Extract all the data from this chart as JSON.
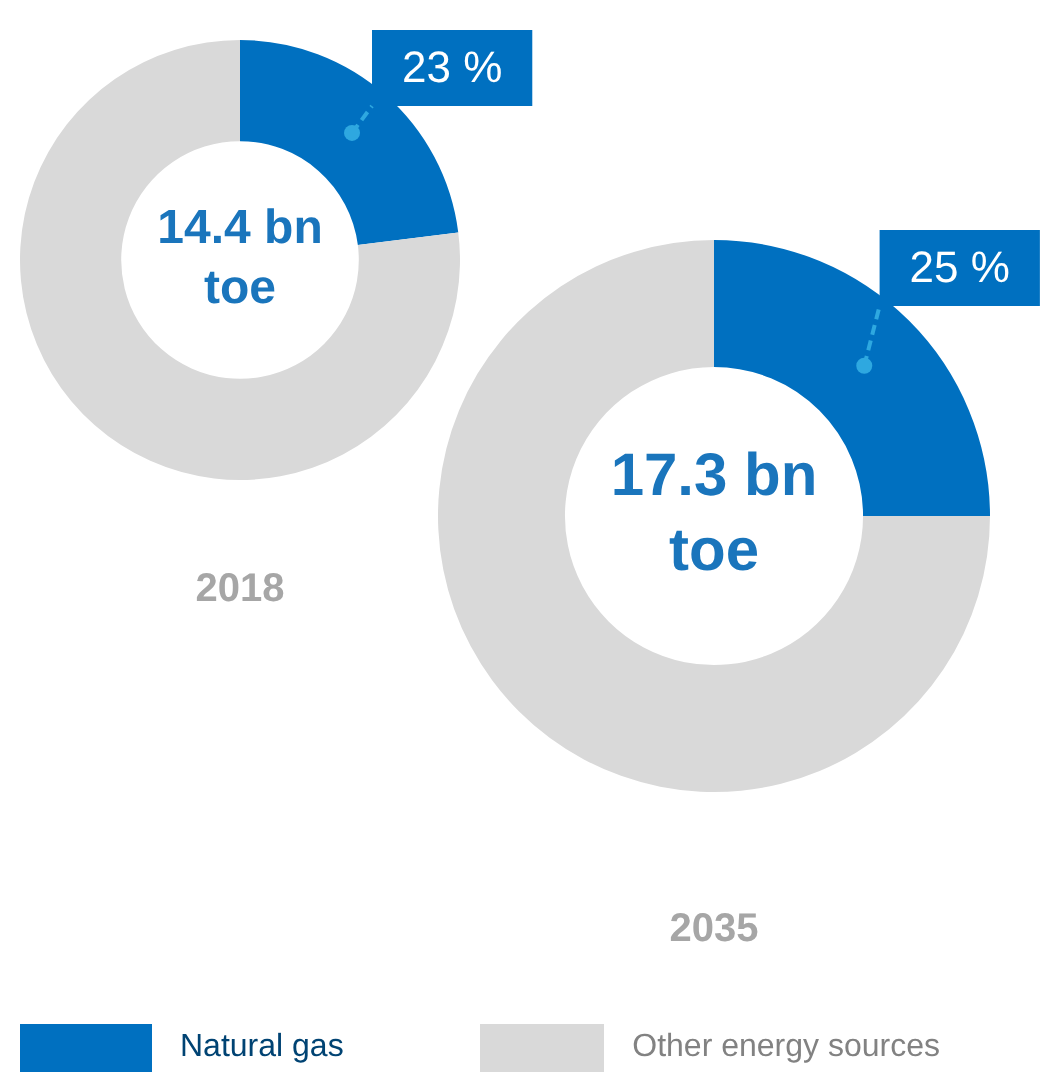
{
  "chart_data": [
    {
      "type": "donut",
      "title": "2018",
      "categories": [
        "Natural gas",
        "Other energy sources"
      ],
      "values": [
        23,
        77
      ],
      "colors": [
        "#0070c0",
        "#d9d9d9"
      ],
      "value_labels": [
        "23 %",
        null
      ],
      "annotations": [
        "14.4 bn toe"
      ],
      "legend": "bottom"
    },
    {
      "type": "donut",
      "title": "2035",
      "categories": [
        null,
        null
      ],
      "values": [
        25,
        75
      ],
      "colors": [
        "#0070c0",
        "#d9d9d9"
      ],
      "value_labels": [
        "25 %",
        null
      ],
      "annotations": [
        "17.3 bn toe"
      ],
      "legend": false
    }
  ]
}
